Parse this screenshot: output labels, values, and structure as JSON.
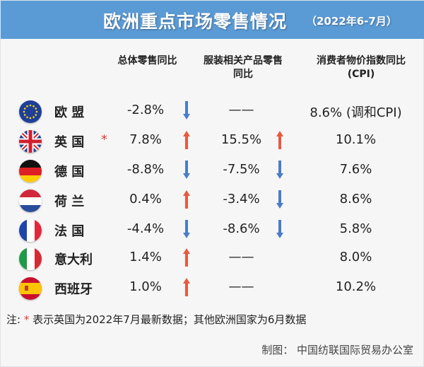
{
  "header": {
    "title": "欧洲重点市场零售情况",
    "subtitle": "（2022年6-7月）"
  },
  "columns": [
    "总体零售同比",
    "服装相关产品零售同比",
    "消费者物价指数同比(CPI)"
  ],
  "column_lines": [
    [
      "总体零售同比"
    ],
    [
      "服装相关产品零售",
      "同比"
    ],
    [
      "消费者物价指数同比",
      "(CPI)"
    ]
  ],
  "colors": {
    "header": "#5b9bd5",
    "up": "#e8593f",
    "down": "#4a7cc9",
    "asterisk": "#e03a2e"
  },
  "rows": [
    {
      "flag": "eu-flag-icon",
      "name": "欧 盟",
      "star": "",
      "retail": "-2.8%",
      "retail_trend": "down",
      "apparel": "——",
      "apparel_trend": "",
      "cpi": "8.6% (调和CPI)"
    },
    {
      "flag": "uk-flag-icon",
      "name": "英 国",
      "star": "*",
      "retail": "7.8%",
      "retail_trend": "up",
      "apparel": "15.5%",
      "apparel_trend": "up",
      "cpi": "10.1%"
    },
    {
      "flag": "germany-flag-icon",
      "name": "德 国",
      "star": "",
      "retail": "-8.8%",
      "retail_trend": "down",
      "apparel": "-7.5%",
      "apparel_trend": "down",
      "cpi": "7.6%"
    },
    {
      "flag": "netherlands-flag-icon",
      "name": "荷 兰",
      "star": "",
      "retail": "0.4%",
      "retail_trend": "up",
      "apparel": "-3.4%",
      "apparel_trend": "down",
      "cpi": "8.6%"
    },
    {
      "flag": "france-flag-icon",
      "name": "法 国",
      "star": "",
      "retail": "-4.4%",
      "retail_trend": "down",
      "apparel": "-8.6%",
      "apparel_trend": "down",
      "cpi": "5.8%"
    },
    {
      "flag": "italy-flag-icon",
      "name": "意大利",
      "star": "",
      "retail": "1.4%",
      "retail_trend": "up",
      "apparel": "——",
      "apparel_trend": "",
      "cpi": "8.0%"
    },
    {
      "flag": "spain-flag-icon",
      "name": "西班牙",
      "star": "",
      "retail": "1.0%",
      "retail_trend": "up",
      "apparel": "——",
      "apparel_trend": "",
      "cpi": "10.2%"
    }
  ],
  "note": {
    "prefix": "注: ",
    "asterisk": "*",
    "text": " 表示英国为2022年7月最新数据；其他欧洲国家为6月数据"
  },
  "credit": "制图：  中国纺联国际贸易办公室"
}
